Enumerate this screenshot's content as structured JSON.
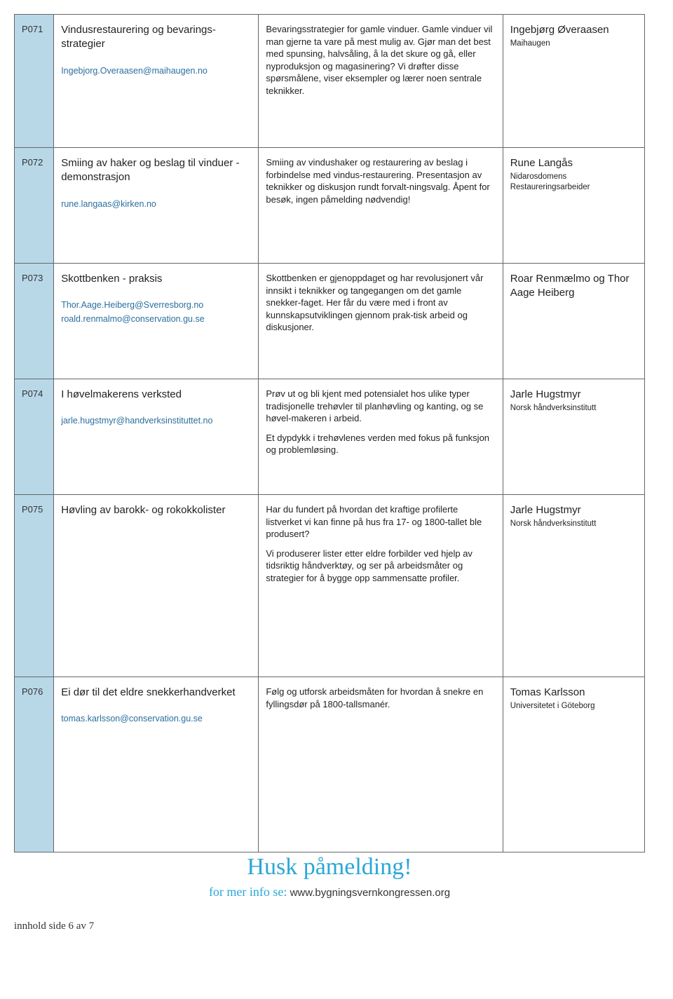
{
  "colors": {
    "code_bg": "#b8d8e8",
    "border": "#666666",
    "email": "#2a6f9e",
    "accent": "#2aa7d8",
    "text": "#333333",
    "background": "#ffffff"
  },
  "rows": [
    {
      "code": "P071",
      "title": "Vindusrestaurering og bevarings-strategier",
      "emails": [
        "Ingebjorg.Overaasen@maihaugen.no"
      ],
      "desc": "Bevaringsstrategier for gamle vinduer. Gamle vinduer vil man gjerne ta vare på mest mulig av. Gjør man det best med spunsing, halvsåling, å la det skure og gå, eller nyproduksjon og magasinering? Vi drøfter disse spørsmålene, viser eksempler og lærer noen sentrale teknikker.",
      "presenters": [
        {
          "name": "Ingebjørg Øveraasen",
          "role": "Maihaugen"
        }
      ]
    },
    {
      "code": "P072",
      "title": "Smiing av haker og beslag til vinduer - demonstrasjon",
      "emails": [
        "rune.langaas@kirken.no"
      ],
      "desc": "Smiing av vindushaker og restaurering av beslag i forbindelse med vindus-restaurering. Presentasjon av teknikker og diskusjon rundt forvalt-ningsvalg. Åpent for besøk, ingen påmelding nødvendig!",
      "presenters": [
        {
          "name": "Rune Langås",
          "role": "Nidarosdomens Restaureringsarbeider"
        }
      ]
    },
    {
      "code": "P073",
      "title": "Skottbenken - praksis",
      "emails": [
        "Thor.Aage.Heiberg@Sverresborg.no",
        "roald.renmalmo@conservation.gu.se"
      ],
      "desc": "Skottbenken er gjenoppdaget og har revolusjonert vår innsikt i teknikker og tangegangen om det gamle snekker-faget. Her får du være med i front av kunnskapsutviklingen gjennom prak-tisk arbeid og diskusjoner.",
      "presenters": [
        {
          "name": "Roar Renmælmo og Thor Aage Heiberg",
          "role": ""
        }
      ]
    },
    {
      "code": "P074",
      "title": "I høvelmakerens verksted",
      "emails": [
        "jarle.hugstmyr@handverksinstituttet.no"
      ],
      "desc": "Prøv ut og bli kjent med potensialet hos ulike typer tradisjonelle trehøvler til planhøvling og kanting, og se høvel-makeren i arbeid.\nEt dypdykk i trehøvlenes verden med fokus på funksjon og problemløsing.",
      "presenters": [
        {
          "name": "Jarle Hugstmyr",
          "role": "Norsk håndverksinstitutt"
        }
      ]
    },
    {
      "code": "P075",
      "title": "Høvling av barokk- og rokokkolister",
      "emails": [],
      "desc": "Har du fundert på hvordan det kraftige profilerte listverket vi kan finne på hus fra 17- og 1800-tallet ble produsert?\n\nVi produserer lister etter eldre forbilder ved hjelp av tidsriktig håndverktøy, og ser på arbeidsmåter og strategier for å bygge opp sammensatte profiler.",
      "presenters": [
        {
          "name": "Jarle Hugstmyr",
          "role": "Norsk håndverksinstitutt"
        }
      ]
    },
    {
      "code": "P076",
      "title": "Ei dør til det eldre snekkerhandverket",
      "emails": [
        "tomas.karlsson@conservation.gu.se"
      ],
      "desc": "Følg og utforsk arbeidsmåten for hvordan å snekre en fyllingsdør på 1800-tallsmanér.",
      "presenters": [
        {
          "name": "Tomas Karlsson",
          "role": "Universitetet i Göteborg"
        }
      ]
    }
  ],
  "husk": "Husk påmelding!",
  "info_label": "for mer info se:",
  "info_url": "www.bygningsvernkongressen.org",
  "footer": "innhold side 6 av 7"
}
